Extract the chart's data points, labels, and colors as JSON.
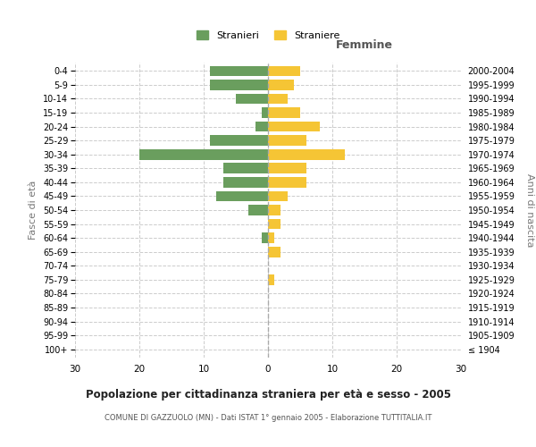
{
  "age_groups": [
    "100+",
    "95-99",
    "90-94",
    "85-89",
    "80-84",
    "75-79",
    "70-74",
    "65-69",
    "60-64",
    "55-59",
    "50-54",
    "45-49",
    "40-44",
    "35-39",
    "30-34",
    "25-29",
    "20-24",
    "15-19",
    "10-14",
    "5-9",
    "0-4"
  ],
  "birth_years": [
    "≤ 1904",
    "1905-1909",
    "1910-1914",
    "1915-1919",
    "1920-1924",
    "1925-1929",
    "1930-1934",
    "1935-1939",
    "1940-1944",
    "1945-1949",
    "1950-1954",
    "1955-1959",
    "1960-1964",
    "1965-1969",
    "1970-1974",
    "1975-1979",
    "1980-1984",
    "1985-1989",
    "1990-1994",
    "1995-1999",
    "2000-2004"
  ],
  "males": [
    0,
    0,
    0,
    0,
    0,
    0,
    0,
    0,
    1,
    0,
    3,
    8,
    7,
    7,
    20,
    9,
    2,
    1,
    5,
    9,
    9
  ],
  "females": [
    0,
    0,
    0,
    0,
    0,
    1,
    0,
    2,
    1,
    2,
    2,
    3,
    6,
    6,
    12,
    6,
    8,
    5,
    3,
    4,
    5
  ],
  "male_color": "#6a9e5e",
  "female_color": "#f5c535",
  "center_line_color": "#aaaaaa",
  "grid_color": "#cccccc",
  "background_color": "#ffffff",
  "xlim": 30,
  "title": "Popolazione per cittadinanza straniera per età e sesso - 2005",
  "subtitle": "COMUNE DI GAZZUOLO (MN) - Dati ISTAT 1° gennaio 2005 - Elaborazione TUTTITALIA.IT",
  "xlabel_right": "Femmine",
  "ylabel_left": "Fasce di età",
  "ylabel_right": "Anni di nascita",
  "legend_stranieri": "Stranieri",
  "legend_straniere": "Straniere"
}
